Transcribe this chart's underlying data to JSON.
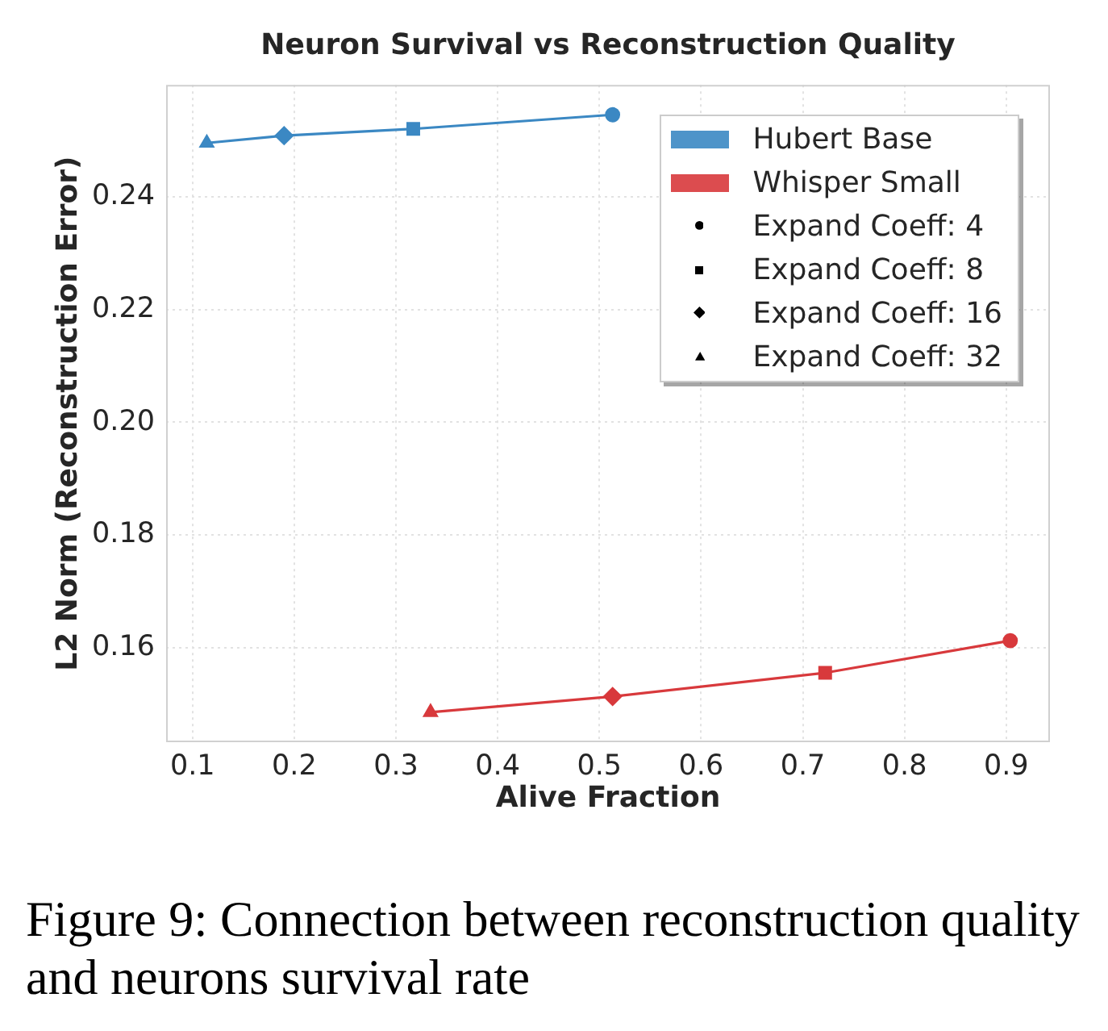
{
  "chart_data": {
    "type": "line",
    "title": "Neuron Survival vs Reconstruction Quality",
    "xlabel": "Alive Fraction",
    "ylabel": "L2 Norm (Reconstruction Error)",
    "xlim": [
      0.074,
      0.943
    ],
    "xticks": [
      0.1,
      0.2,
      0.3,
      0.4,
      0.5,
      0.6,
      0.7,
      0.8,
      0.9
    ],
    "ylim": [
      0.1433,
      0.2598
    ],
    "yticks": [
      0.16,
      0.18,
      {
        "value": 0.2,
        "label": "0.20"
      },
      0.22,
      0.24
    ],
    "grid": true,
    "legend": "top right",
    "annotations": [
      "Expand Coeff: 4",
      "Expand Coeff: 8",
      "Expand Coeff: 16",
      "Expand Coeff: 32",
      "Figure 9: Connection between reconstruction quality and neurons survival rate"
    ],
    "series": [
      {
        "name": "Hubert Base",
        "type": "line",
        "color": "#3b88c3",
        "marker": "none",
        "x": [
          0.114,
          0.19,
          0.317,
          0.513
        ],
        "values": [
          0.2495,
          0.2508,
          0.252,
          0.2545
        ]
      },
      {
        "name": "Whisper Small",
        "type": "line",
        "color": "#d8393c",
        "marker": "none",
        "x": [
          0.334,
          0.513,
          0.722,
          0.904
        ],
        "values": [
          0.1486,
          0.1514,
          0.1556,
          0.1613
        ]
      },
      {
        "type": "scatter",
        "marker": "circle",
        "x": [
          0.513,
          0.904
        ],
        "values": [
          0.2545,
          0.1613
        ],
        "colors": [
          "#3b88c3",
          "#d8393c"
        ]
      },
      {
        "type": "scatter",
        "marker": "square",
        "x": [
          0.317,
          0.722
        ],
        "values": [
          0.252,
          0.1556
        ],
        "colors": [
          "#3b88c3",
          "#d8393c"
        ]
      },
      {
        "type": "scatter",
        "marker": "diamond",
        "x": [
          0.19,
          0.513
        ],
        "values": [
          0.2508,
          0.1514
        ],
        "colors": [
          "#3b88c3",
          "#d8393c"
        ]
      },
      {
        "type": "scatter",
        "marker": "triangle",
        "x": [
          0.114,
          0.334
        ],
        "values": [
          0.2495,
          0.1486
        ],
        "colors": [
          "#3b88c3",
          "#d8393c"
        ]
      }
    ]
  }
}
